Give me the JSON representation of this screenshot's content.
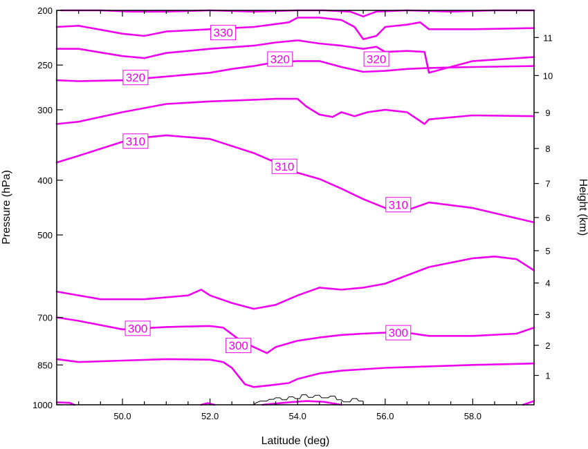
{
  "chart_data": {
    "type": "line",
    "title": "",
    "xlabel": "Latitude (deg)",
    "ylabel_left": "Pressure (hPa)",
    "ylabel_right": "Height (km)",
    "xlim": [
      48.5,
      59.4
    ],
    "ylim_pressure": [
      1000,
      200
    ],
    "y_scale": "log",
    "x_ticks": [
      {
        "value": 50,
        "label": "50.0"
      },
      {
        "value": 52,
        "label": "52.0"
      },
      {
        "value": 54,
        "label": "54.0"
      },
      {
        "value": 56,
        "label": "56.0"
      },
      {
        "value": 58,
        "label": "58.0"
      }
    ],
    "pressure_ticks": [
      {
        "value": 200,
        "label": "200"
      },
      {
        "value": 250,
        "label": "250"
      },
      {
        "value": 300,
        "label": "300"
      },
      {
        "value": 400,
        "label": "400"
      },
      {
        "value": 500,
        "label": "500"
      },
      {
        "value": 700,
        "label": "700"
      },
      {
        "value": 850,
        "label": "850"
      },
      {
        "value": 1000,
        "label": "1000"
      }
    ],
    "height_ticks": [
      {
        "value": 1,
        "label": "1"
      },
      {
        "value": 2,
        "label": "2"
      },
      {
        "value": 3,
        "label": "3"
      },
      {
        "value": 4,
        "label": "4"
      },
      {
        "value": 5,
        "label": "5"
      },
      {
        "value": 6,
        "label": "6"
      },
      {
        "value": 7,
        "label": "7"
      },
      {
        "value": 8,
        "label": "8"
      },
      {
        "value": 9,
        "label": "9"
      },
      {
        "value": 10,
        "label": "10"
      },
      {
        "value": 11,
        "label": "11"
      }
    ],
    "line_color": "#ee00ee",
    "terrain_color": "#000000",
    "contours": [
      {
        "x": [
          48.6,
          49.5,
          50.2,
          51.0,
          52.0,
          53.0,
          54.0,
          54.6,
          55.2,
          55.5,
          55.8,
          56.5,
          57.5,
          58.5,
          59.4
        ],
        "y": [
          200,
          200,
          201,
          201,
          200,
          201,
          200,
          200,
          201,
          205,
          201,
          200,
          201,
          200,
          200
        ]
      },
      {
        "x": [
          48.5,
          49.0,
          50.0,
          50.5,
          51.0,
          52.0,
          53.0,
          53.8,
          54.0,
          54.5,
          55.0,
          55.3,
          55.5,
          55.8,
          56.0,
          56.5,
          56.8,
          57.0,
          58.0,
          59.4
        ],
        "y": [
          214,
          213,
          220,
          222,
          218,
          216,
          214,
          210,
          206,
          206,
          208,
          214,
          225,
          222,
          214,
          212,
          210,
          216,
          216,
          215
        ]
      },
      {
        "x": [
          48.5,
          49.0,
          50.0,
          50.5,
          51.0,
          52.0,
          53.0,
          53.5,
          54.0,
          54.5,
          55.0,
          55.5,
          55.8,
          56.0,
          56.5,
          56.9,
          57.0,
          58.0,
          59.4
        ],
        "y": [
          234,
          234,
          241,
          243,
          238,
          234,
          231,
          228,
          226,
          229,
          231,
          234,
          232,
          237,
          236,
          237,
          258,
          246,
          242
        ]
      },
      {
        "x": [
          48.5,
          49.0,
          50.0,
          51.0,
          52.0,
          52.5,
          53.0,
          53.5,
          54.0,
          54.5,
          55.0,
          55.5,
          56.0,
          56.5,
          57.0,
          58.0,
          59.4
        ],
        "y": [
          266,
          267,
          266,
          262,
          258,
          254,
          251,
          247,
          246,
          246,
          252,
          257,
          256,
          254,
          253,
          252,
          251
        ]
      },
      {
        "x": [
          48.5,
          49.0,
          50.0,
          51.0,
          52.0,
          53.0,
          53.5,
          54.0,
          54.2,
          54.5,
          54.8,
          55.0,
          55.3,
          55.6,
          56.0,
          56.5,
          56.9,
          57.0,
          58.0,
          59.4
        ],
        "y": [
          318,
          315,
          303,
          293,
          290,
          288,
          287,
          287,
          296,
          306,
          309,
          303,
          308,
          303,
          300,
          303,
          318,
          312,
          307,
          308
        ]
      },
      {
        "x": [
          48.5,
          49.0,
          50.0,
          50.5,
          51.0,
          52.0,
          53.0,
          53.5,
          54.0,
          54.5,
          55.0,
          55.5,
          56.0,
          56.5,
          57.0,
          58.0,
          59.4
        ],
        "y": [
          372,
          362,
          342,
          336,
          333,
          338,
          358,
          372,
          388,
          398,
          414,
          432,
          448,
          452,
          438,
          448,
          475
        ]
      },
      {
        "x": [
          48.5,
          49.5,
          50.5,
          51.5,
          51.8,
          52.0,
          52.5,
          53.0,
          53.5,
          54.0,
          54.5,
          55.0,
          55.5,
          56.0,
          57.0,
          58.0,
          58.5,
          59.0,
          59.4
        ],
        "y": [
          630,
          650,
          650,
          640,
          625,
          640,
          660,
          676,
          665,
          640,
          620,
          625,
          620,
          610,
          570,
          550,
          546,
          552,
          578
        ]
      },
      {
        "x": [
          48.5,
          49.0,
          50.0,
          51.0,
          52.0,
          52.3,
          52.7,
          53.0,
          53.3,
          53.5,
          54.0,
          54.5,
          55.0,
          55.5,
          56.0,
          56.5,
          57.0,
          58.0,
          59.0,
          59.4
        ],
        "y": [
          700,
          710,
          735,
          728,
          725,
          730,
          770,
          790,
          810,
          790,
          770,
          760,
          752,
          748,
          745,
          745,
          755,
          755,
          748,
          730
        ]
      },
      {
        "x": [
          48.5,
          49.0,
          50.0,
          51.0,
          52.0,
          52.3,
          52.5,
          52.8,
          53.0,
          53.3,
          53.8,
          54.0,
          54.5,
          55.0,
          56.0,
          57.0,
          58.0,
          59.4
        ],
        "y": [
          830,
          840,
          835,
          830,
          832,
          840,
          860,
          920,
          930,
          925,
          915,
          900,
          880,
          870,
          860,
          855,
          850,
          845
        ]
      },
      {
        "x": [
          48.5,
          48.8,
          48.9
        ],
        "y": [
          990,
          992,
          1000
        ]
      },
      {
        "x": [
          51.8,
          51.95,
          52.1
        ],
        "y": [
          1000,
          993,
          1000
        ]
      },
      {
        "x": [
          53.2,
          53.8,
          54.2,
          54.6,
          55.0
        ],
        "y": [
          1000,
          990,
          985,
          988,
          1000
        ]
      },
      {
        "x": [
          59.15,
          59.4
        ],
        "y": [
          1000,
          985
        ]
      }
    ],
    "labels": [
      {
        "text": "330",
        "x": 52.3,
        "y": 219
      },
      {
        "text": "320",
        "x": 53.6,
        "y": 244
      },
      {
        "text": "320",
        "x": 55.8,
        "y": 244
      },
      {
        "text": "320",
        "x": 50.3,
        "y": 263
      },
      {
        "text": "310",
        "x": 50.3,
        "y": 341
      },
      {
        "text": "310",
        "x": 53.7,
        "y": 378
      },
      {
        "text": "310",
        "x": 56.3,
        "y": 442
      },
      {
        "text": "300",
        "x": 50.35,
        "y": 732
      },
      {
        "text": "300",
        "x": 52.65,
        "y": 785
      },
      {
        "text": "300",
        "x": 56.3,
        "y": 745
      }
    ],
    "terrain_x": [
      53.0,
      53.05,
      53.15,
      53.3,
      53.35,
      53.45,
      53.5,
      53.6,
      53.65,
      53.75,
      53.8,
      53.9,
      53.95,
      54.05,
      54.1,
      54.2,
      54.25,
      54.35,
      54.4,
      54.5,
      54.55,
      54.7,
      54.75,
      54.85,
      54.9,
      55.0,
      55.05,
      55.2,
      55.25,
      55.35,
      55.4,
      55.5
    ],
    "terrain_y": [
      1000,
      992,
      985,
      985,
      978,
      978,
      972,
      972,
      980,
      980,
      968,
      968,
      975,
      975,
      960,
      960,
      970,
      970,
      962,
      962,
      972,
      972,
      965,
      965,
      980,
      980,
      988,
      988,
      975,
      975,
      985,
      985
    ]
  }
}
